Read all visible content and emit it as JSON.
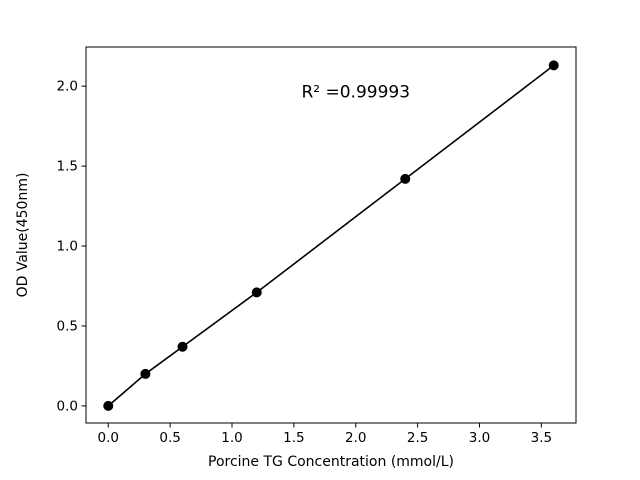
{
  "figure": {
    "background_color": "#ffffff"
  },
  "chart_data": {
    "type": "scatter",
    "title": "",
    "xlabel": "Porcine TG Concentration (mmol/L)",
    "ylabel": "OD Value(450nm)",
    "series": [
      {
        "name": "standard-curve",
        "x": [
          0.0,
          0.3,
          0.6,
          1.2,
          2.4,
          3.6
        ],
        "y": [
          0.0,
          0.2,
          0.37,
          0.71,
          1.42,
          2.13
        ]
      }
    ],
    "annotation": {
      "text": "R² =0.99993",
      "x": 2.0,
      "y": 1.93
    },
    "xlim": [
      -0.18,
      3.78
    ],
    "ylim": [
      -0.107,
      2.245
    ],
    "xticks": [
      0.0,
      0.5,
      1.0,
      1.5,
      2.0,
      2.5,
      3.0,
      3.5
    ],
    "xtick_labels": [
      "0.0",
      "0.5",
      "1.0",
      "1.5",
      "2.0",
      "2.5",
      "3.0",
      "3.5"
    ],
    "yticks": [
      0.0,
      0.5,
      1.0,
      1.5,
      2.0
    ],
    "ytick_labels": [
      "0.0",
      "0.5",
      "1.0",
      "1.5",
      "2.0"
    ],
    "grid": false,
    "legend_position": "none",
    "line_color": "#000000",
    "marker_color": "#000000",
    "marker_shape": "circle",
    "spine_color": "#000000"
  }
}
